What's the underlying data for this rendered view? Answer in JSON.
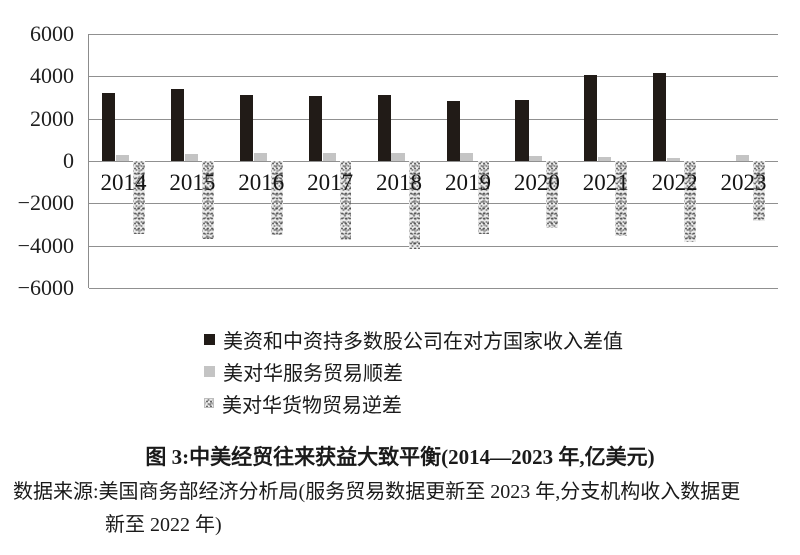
{
  "figure": {
    "caption": "图 3:中美经贸往来获益大致平衡(2014—2023 年,亿美元)",
    "source": {
      "line1": "数据来源:美国商务部经济分析局(服务贸易数据更新至 2023 年,分支机构收入数据更",
      "line2": "新至 2022 年)"
    }
  },
  "legend": {
    "items": [
      {
        "label": "美资和中资持多数股公司在对方国家收入差值",
        "swatch": "black-square"
      },
      {
        "label": "美对华服务贸易顺差",
        "swatch": "gray-square"
      },
      {
        "label": "美对华货物贸易逆差",
        "swatch": "textured-square"
      }
    ]
  },
  "chart_data": {
    "type": "bar",
    "title": "图 3:中美经贸往来获益大致平衡(2014—2023 年,亿美元)",
    "categories": [
      "2014",
      "2015",
      "2016",
      "2017",
      "2018",
      "2019",
      "2020",
      "2021",
      "2022",
      "2023"
    ],
    "series": [
      {
        "name": "美资和中资持多数股公司在对方国家收入差值",
        "color": "#211b17",
        "pattern": "solid-black",
        "values": [
          3200,
          3400,
          3100,
          3050,
          3100,
          2850,
          2900,
          4050,
          4150,
          null
        ]
      },
      {
        "name": "美对华服务贸易顺差",
        "color": "#c4c4c4",
        "pattern": "solid-gray",
        "values": [
          280,
          330,
          370,
          390,
          390,
          360,
          245,
          170,
          130,
          270
        ]
      },
      {
        "name": "美对华货物贸易逆差",
        "color": "#ebebeb",
        "pattern": "speckled",
        "values": [
          -3450,
          -3700,
          -3500,
          -3750,
          -4180,
          -3450,
          -3150,
          -3550,
          -3850,
          -2850
        ]
      }
    ],
    "ylim": [
      -6000,
      6000
    ],
    "yticks": [
      6000,
      4000,
      2000,
      0,
      -2000,
      -4000,
      -6000
    ],
    "xlabel": "",
    "ylabel": "",
    "unit": "亿美元",
    "grid": true,
    "legend_position": "bottom-left"
  }
}
